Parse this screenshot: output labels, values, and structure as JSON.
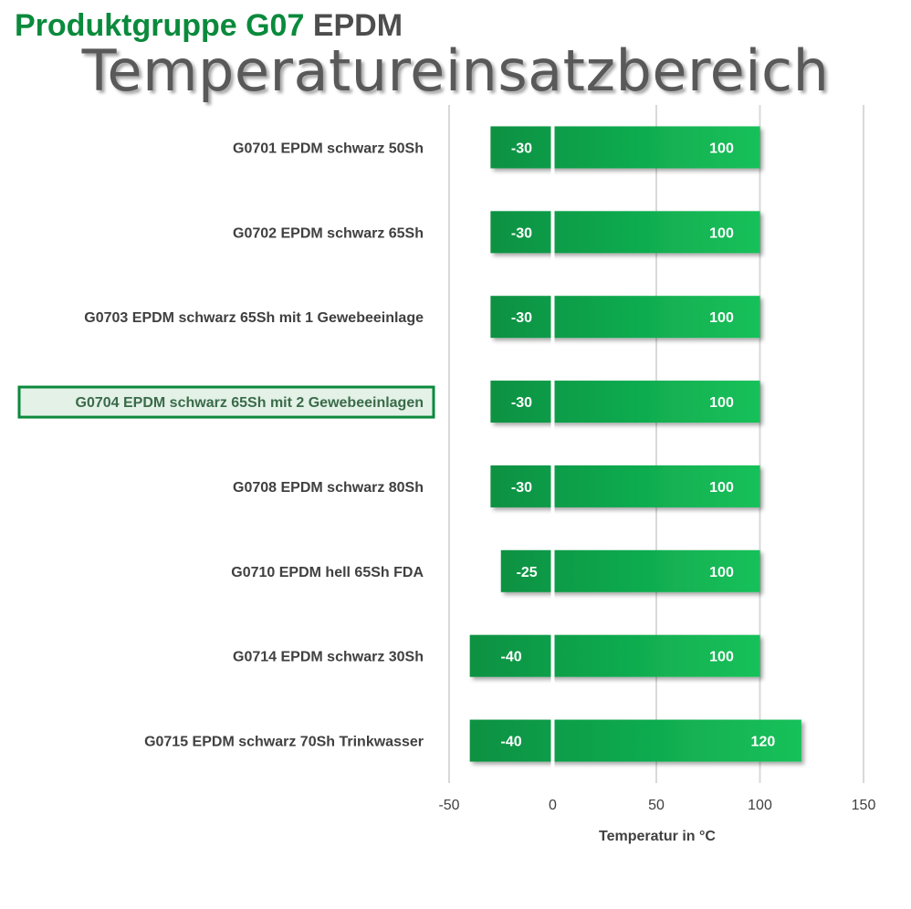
{
  "header": {
    "group_label": "Produktgruppe G07",
    "material_label": "EPDM",
    "title": "Temperatureinsatzbereich"
  },
  "colors": {
    "bar_dark": "#0a9142",
    "bar_light": "#16c15a",
    "brand_green": "#0a8a3c",
    "gridline": "#d9d9d9",
    "highlight_border": "#0a8a3c"
  },
  "chart_data": {
    "type": "bar",
    "orientation": "horizontal",
    "title": "Temperatureinsatzbereich",
    "xlabel": "Temperatur in °C",
    "ylabel": "",
    "xlim": [
      -50,
      150
    ],
    "xticks": [
      -50,
      0,
      50,
      100,
      150
    ],
    "grid": true,
    "highlighted_category": "G0704 EPDM schwarz 65Sh mit 2 Gewebeeinlagen",
    "categories": [
      "G0701 EPDM schwarz 50Sh",
      "G0702 EPDM schwarz 65Sh",
      "G0703 EPDM schwarz 65Sh mit 1 Gewebeeinlage",
      "G0704 EPDM schwarz 65Sh mit 2 Gewebeeinlagen",
      "G0708 EPDM schwarz 80Sh",
      "G0710 EPDM hell 65Sh FDA",
      "G0714 EPDM schwarz 30Sh",
      "G0715 EPDM schwarz 70Sh Trinkwasser"
    ],
    "series": [
      {
        "name": "min",
        "values": [
          -30,
          -30,
          -30,
          -30,
          -30,
          -25,
          -40,
          -40
        ]
      },
      {
        "name": "max",
        "values": [
          100,
          100,
          100,
          100,
          100,
          100,
          100,
          120
        ]
      }
    ]
  }
}
